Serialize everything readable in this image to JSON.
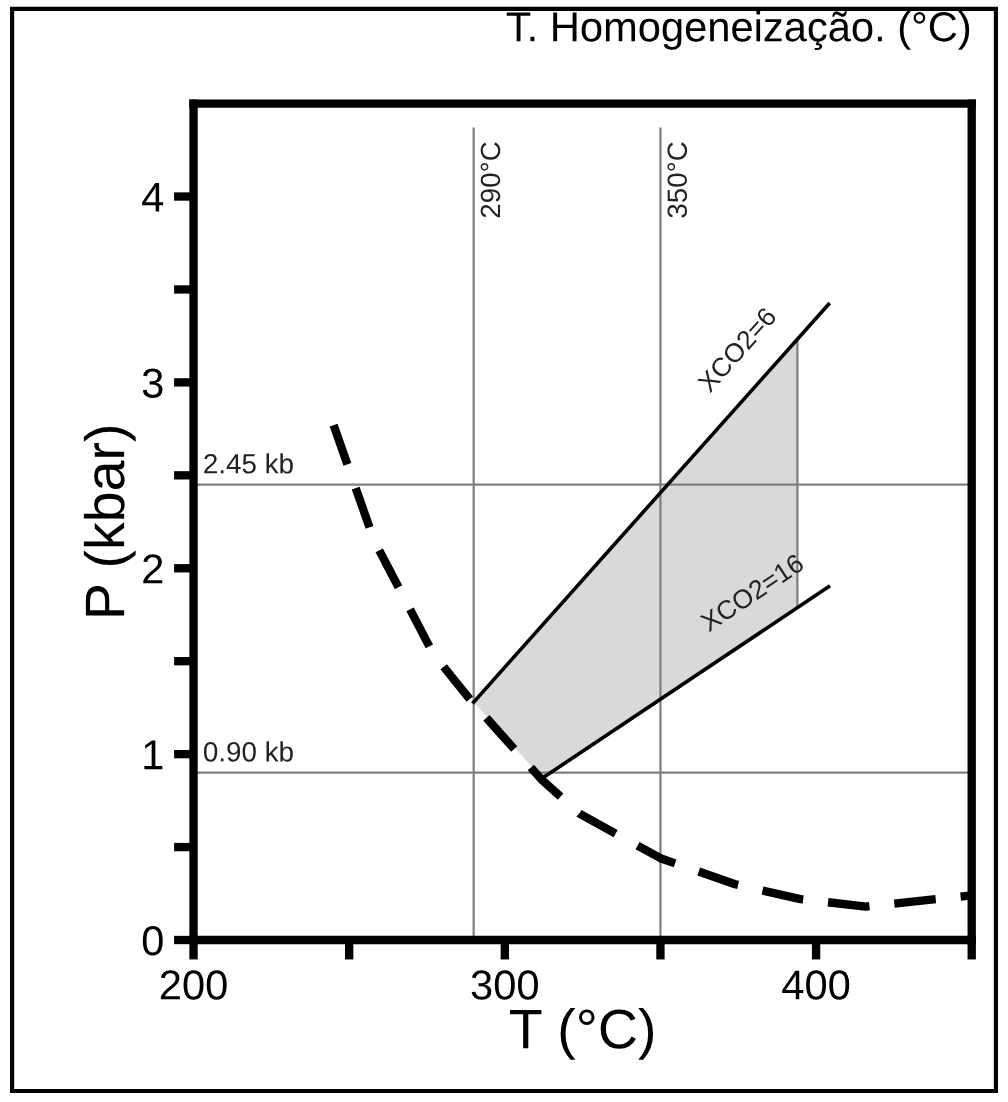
{
  "chart_data": {
    "type": "line",
    "title": "T. Homogeneização. (°C)",
    "xlabel": "T (°C)",
    "ylabel": "P (kbar)",
    "xlim": [
      200,
      450
    ],
    "ylim": [
      0,
      4.5
    ],
    "xticks": [
      200,
      {
        "value": 250,
        "label": null
      },
      300,
      {
        "value": 350,
        "label": null
      },
      400,
      {
        "value": 450,
        "label": null
      }
    ],
    "yticks": [
      0,
      {
        "value": 0.5,
        "label": null
      },
      1,
      {
        "value": 1.5,
        "label": null
      },
      2,
      {
        "value": 2.5,
        "label": null
      },
      3,
      {
        "value": 3.5,
        "label": null
      },
      4
    ],
    "grid": false,
    "legend": false,
    "series": [
      {
        "type": "area",
        "color": "#d9d9d9",
        "x": [
          290,
          312,
          394,
          394
        ],
        "values": [
          1.28,
          0.87,
          1.8,
          3.22
        ]
      },
      {
        "color": "#000000",
        "line_style": "dashed",
        "x": [
          245,
          258,
          277,
          289,
          312,
          324,
          350,
          374,
          395,
          416,
          450
        ],
        "values": [
          2.77,
          2.15,
          1.54,
          1.29,
          0.86,
          0.68,
          0.44,
          0.3,
          0.22,
          0.18,
          0.24
        ]
      },
      {
        "name": "XCO2=6",
        "color": "#000000",
        "line_style": "solid",
        "x": [
          290,
          404
        ],
        "values": [
          1.28,
          3.42
        ]
      },
      {
        "name": "XCO2=16",
        "color": "#000000",
        "line_style": "solid",
        "x": [
          312,
          404
        ],
        "values": [
          0.87,
          1.9
        ]
      }
    ],
    "ref_lines": [
      {
        "axis": "x",
        "value": 290,
        "label": "290°C",
        "color": "#7f7f7f"
      },
      {
        "axis": "x",
        "value": 350,
        "label": "350°C",
        "color": "#7f7f7f"
      },
      {
        "axis": "y",
        "value": 2.45,
        "label": "2.45 kb",
        "color": "#7f7f7f"
      },
      {
        "axis": "y",
        "value": 0.9,
        "label": "0.90 kb",
        "color": "#7f7f7f"
      }
    ]
  }
}
